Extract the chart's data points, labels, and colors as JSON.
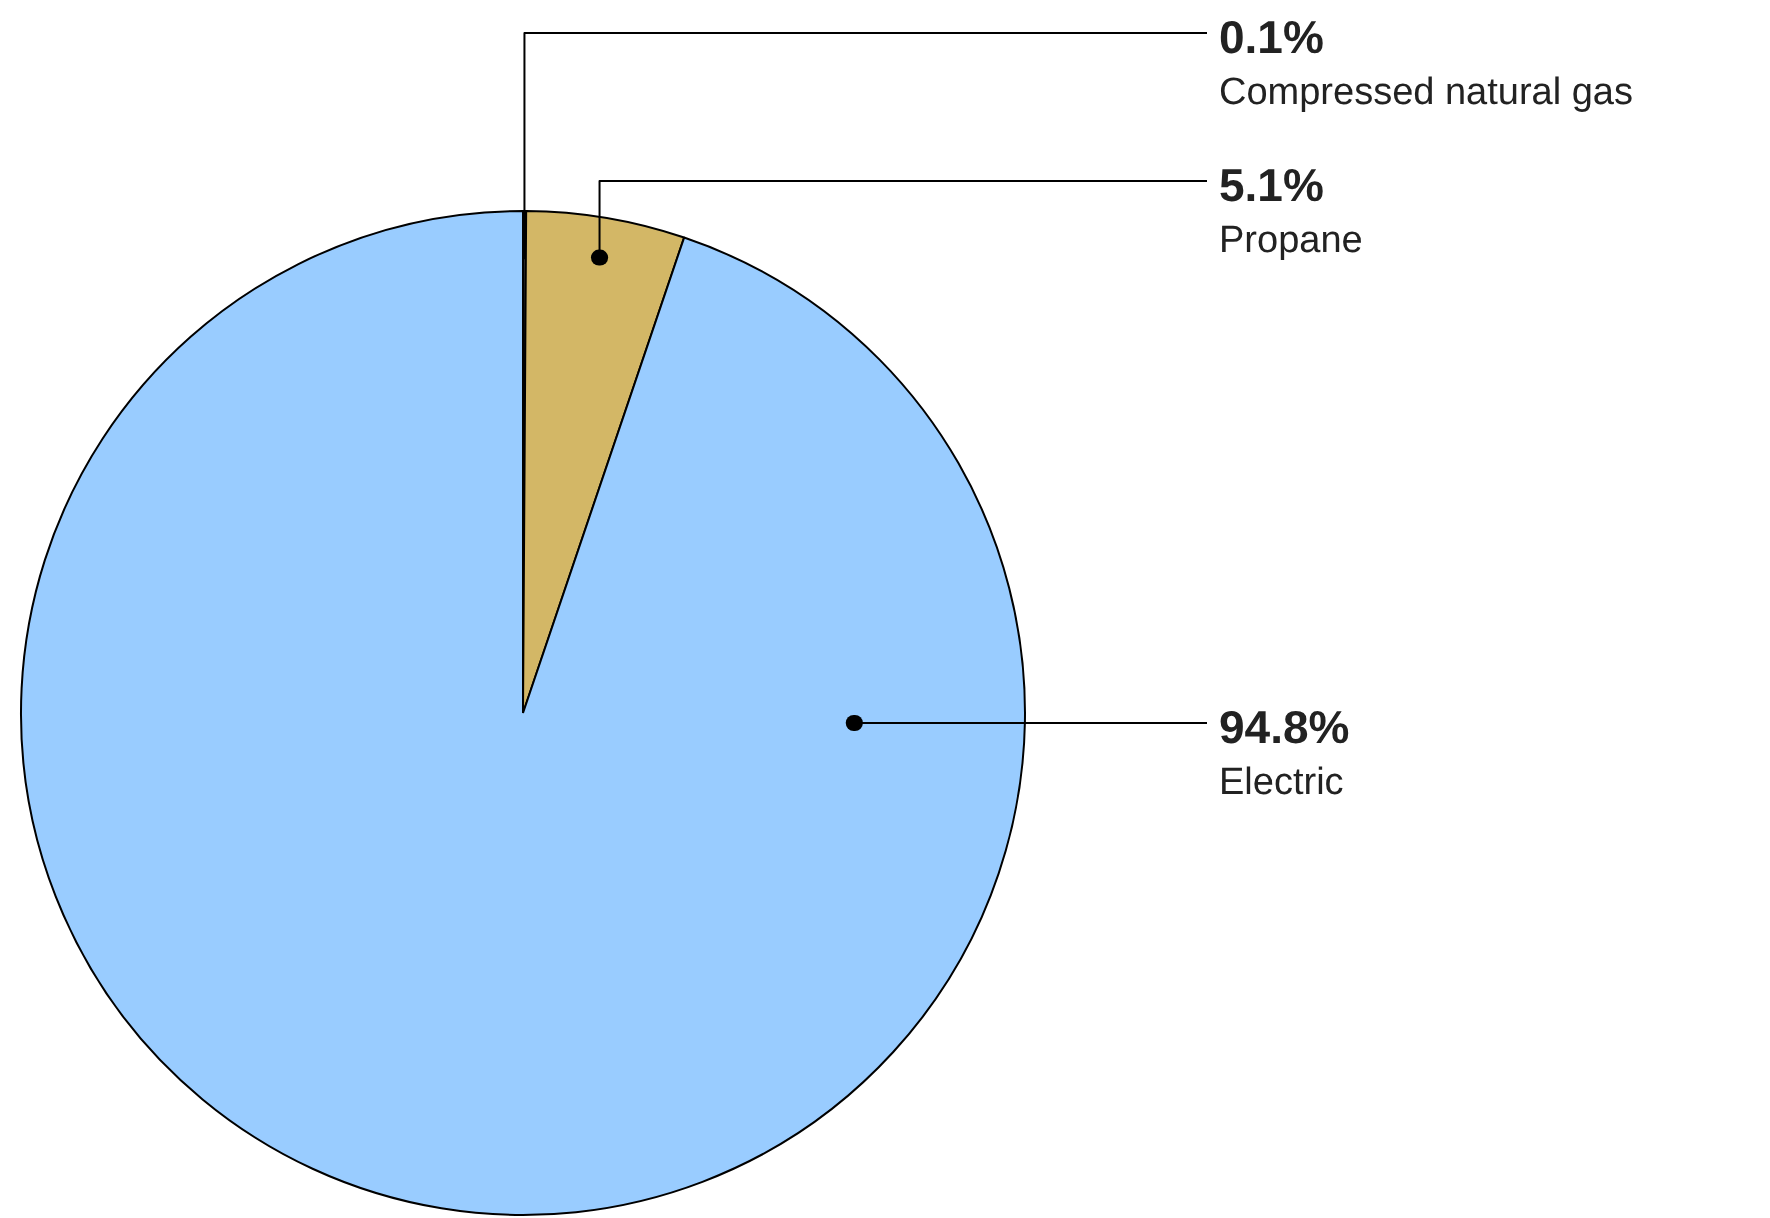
{
  "chart_data": {
    "type": "pie",
    "categories": [
      "Compressed natural gas",
      "Propane",
      "Electric"
    ],
    "values": [
      0.1,
      5.1,
      94.8
    ],
    "colors": [
      "#3a3a3a",
      "#d3b766",
      "#99ccff"
    ],
    "value_labels": [
      "0.1%",
      "5.1%",
      "94.8%"
    ]
  }
}
